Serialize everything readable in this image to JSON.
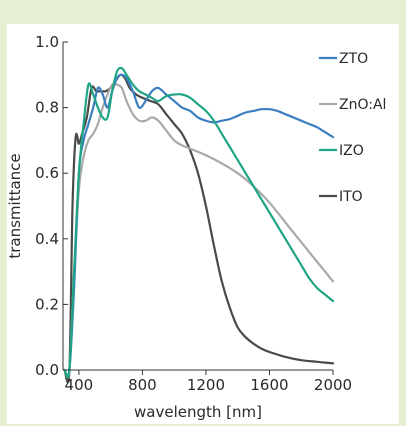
{
  "chart_data": {
    "type": "line",
    "title": "",
    "xlabel": "wavelength [nm]",
    "ylabel": "transmittance",
    "xlim": [
      300,
      2000
    ],
    "ylim": [
      0,
      1
    ],
    "xticks": [
      400,
      800,
      1200,
      1600,
      2000
    ],
    "xtick_labels": [
      "400",
      "800",
      "1200",
      "1600",
      "2000"
    ],
    "yticks": [
      0,
      0.2,
      0.4,
      0.6,
      0.8,
      1.0
    ],
    "ytick_labels": [
      "0.0",
      "0.2",
      "0.4",
      "0.6",
      "0.8",
      "1.0"
    ],
    "grid": false,
    "legend": "right",
    "series": [
      {
        "name": "ZTO",
        "color": "#3b7fc0",
        "x": [
          310,
          340,
          370,
          400,
          430,
          460,
          490,
          520,
          550,
          580,
          610,
          640,
          670,
          700,
          740,
          780,
          820,
          860,
          900,
          950,
          1000,
          1050,
          1100,
          1150,
          1200,
          1250,
          1300,
          1350,
          1400,
          1450,
          1500,
          1550,
          1600,
          1650,
          1700,
          1750,
          1800,
          1850,
          1900,
          1950,
          2000
        ],
        "y": [
          0.0,
          0.0,
          0.25,
          0.6,
          0.7,
          0.75,
          0.8,
          0.86,
          0.84,
          0.8,
          0.85,
          0.89,
          0.9,
          0.89,
          0.85,
          0.8,
          0.82,
          0.85,
          0.86,
          0.84,
          0.82,
          0.8,
          0.79,
          0.77,
          0.76,
          0.755,
          0.76,
          0.765,
          0.775,
          0.785,
          0.79,
          0.795,
          0.795,
          0.79,
          0.78,
          0.77,
          0.76,
          0.75,
          0.74,
          0.725,
          0.71
        ]
      },
      {
        "name": "ZnO:Al",
        "color": "#a9a9a9",
        "x": [
          310,
          340,
          370,
          400,
          430,
          460,
          490,
          520,
          550,
          580,
          610,
          640,
          670,
          700,
          740,
          780,
          820,
          860,
          900,
          950,
          1000,
          1050,
          1100,
          1200,
          1300,
          1400,
          1500,
          1600,
          1700,
          1800,
          1900,
          2000
        ],
        "y": [
          0.0,
          0.0,
          0.3,
          0.55,
          0.65,
          0.7,
          0.72,
          0.75,
          0.8,
          0.84,
          0.87,
          0.87,
          0.86,
          0.82,
          0.78,
          0.76,
          0.76,
          0.77,
          0.76,
          0.73,
          0.7,
          0.685,
          0.675,
          0.655,
          0.63,
          0.6,
          0.56,
          0.51,
          0.45,
          0.39,
          0.33,
          0.27
        ]
      },
      {
        "name": "IZO",
        "color": "#1fa585",
        "x": [
          310,
          340,
          370,
          400,
          430,
          460,
          490,
          520,
          550,
          580,
          610,
          640,
          670,
          700,
          740,
          780,
          820,
          860,
          900,
          950,
          1000,
          1050,
          1100,
          1150,
          1200,
          1250,
          1300,
          1350,
          1400,
          1450,
          1500,
          1550,
          1600,
          1650,
          1700,
          1750,
          1800,
          1850,
          1900,
          1950,
          2000
        ],
        "y": [
          0.0,
          0.0,
          0.3,
          0.6,
          0.75,
          0.87,
          0.84,
          0.8,
          0.77,
          0.77,
          0.85,
          0.91,
          0.92,
          0.9,
          0.87,
          0.85,
          0.84,
          0.83,
          0.82,
          0.835,
          0.84,
          0.84,
          0.83,
          0.81,
          0.79,
          0.76,
          0.72,
          0.68,
          0.64,
          0.6,
          0.56,
          0.52,
          0.48,
          0.44,
          0.4,
          0.36,
          0.32,
          0.28,
          0.25,
          0.23,
          0.21
        ]
      },
      {
        "name": "ITO",
        "color": "#4a4a4a",
        "x": [
          310,
          340,
          360,
          380,
          400,
          420,
          450,
          480,
          510,
          540,
          570,
          600,
          630,
          660,
          690,
          720,
          760,
          800,
          850,
          900,
          950,
          1000,
          1050,
          1100,
          1150,
          1200,
          1250,
          1300,
          1350,
          1400,
          1450,
          1500,
          1550,
          1600,
          1700,
          1800,
          1900,
          2000
        ],
        "y": [
          0.0,
          0.0,
          0.5,
          0.71,
          0.69,
          0.72,
          0.77,
          0.86,
          0.85,
          0.85,
          0.85,
          0.86,
          0.88,
          0.9,
          0.89,
          0.86,
          0.84,
          0.83,
          0.82,
          0.81,
          0.78,
          0.75,
          0.72,
          0.67,
          0.6,
          0.5,
          0.38,
          0.27,
          0.19,
          0.13,
          0.1,
          0.08,
          0.065,
          0.055,
          0.04,
          0.03,
          0.025,
          0.02
        ]
      }
    ]
  }
}
